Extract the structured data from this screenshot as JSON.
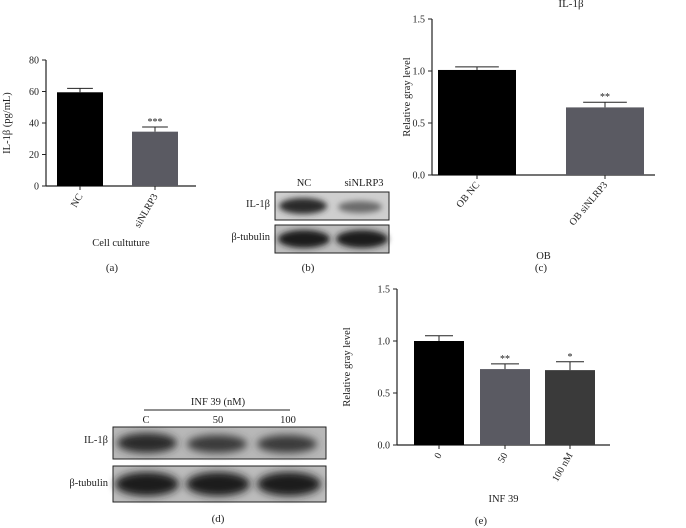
{
  "panels": {
    "a": {
      "letter": "(a)"
    },
    "b": {
      "letter": "(b)",
      "lanes": [
        "NC",
        "siNLRP3"
      ],
      "rows": [
        "IL-1β",
        "β-tubulin"
      ]
    },
    "c": {
      "letter": "(c)",
      "header": "IL-1β"
    },
    "d": {
      "letter": "(d)",
      "treatment": "INF 39 (nM)",
      "lanes": [
        "C",
        "50",
        "100"
      ],
      "rows": [
        "IL-1β",
        "β-tubulin"
      ]
    },
    "e": {
      "letter": "(e)"
    }
  },
  "colors": {
    "black_bar": "#000000",
    "grey_bar": "#5a5a62",
    "dark_grey_bar": "#3a3a3a",
    "axis": "#222222"
  },
  "chart_data": [
    {
      "id": "a",
      "type": "bar",
      "categories": [
        "NC",
        "siNLRP3"
      ],
      "values": [
        59.5,
        34.5
      ],
      "errors": [
        2.5,
        3.0
      ],
      "significance": [
        "",
        "***"
      ],
      "xlabel": "Cell cultuture",
      "ylabel": "IL-1β (pg/mL)",
      "ylim": [
        0,
        80
      ],
      "yticks": [
        "0",
        "20",
        "40",
        "60",
        "80"
      ],
      "bar_colors": [
        "#000000",
        "#5a5a62"
      ]
    },
    {
      "id": "c",
      "type": "bar",
      "categories": [
        "OB NC",
        "OB siNLRP3"
      ],
      "values": [
        1.01,
        0.65
      ],
      "errors": [
        0.03,
        0.05
      ],
      "significance": [
        "",
        "**"
      ],
      "xlabel": "OB",
      "ylabel": "Relative gray level",
      "ylim": [
        0,
        1.5
      ],
      "yticks": [
        "0.0",
        "0.5",
        "1.0",
        "1.5"
      ],
      "bar_colors": [
        "#000000",
        "#5a5a62"
      ]
    },
    {
      "id": "e",
      "type": "bar",
      "categories": [
        "0",
        "50",
        "100 nM"
      ],
      "values": [
        1.0,
        0.73,
        0.72
      ],
      "errors": [
        0.05,
        0.05,
        0.08
      ],
      "significance": [
        "",
        "**",
        "*"
      ],
      "xlabel": "INF 39",
      "ylabel": "Relative gray level",
      "ylim": [
        0,
        1.5
      ],
      "yticks": [
        "0.0",
        "0.5",
        "1.0",
        "1.5"
      ],
      "bar_colors": [
        "#000000",
        "#5a5a62",
        "#3a3a3a"
      ]
    }
  ]
}
